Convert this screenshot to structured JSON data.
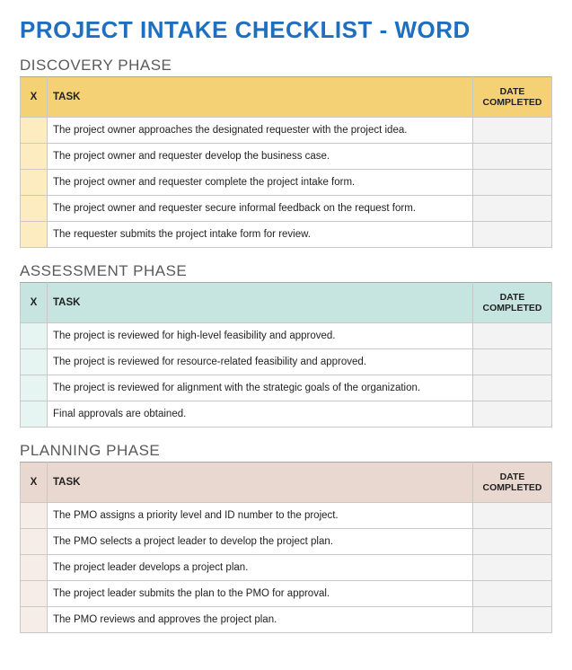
{
  "title": "PROJECT INTAKE CHECKLIST - WORD",
  "title_color": "#1f6fc1",
  "columns": {
    "x": "X",
    "task": "TASK",
    "date": "DATE COMPLETED"
  },
  "sections": [
    {
      "name": "DISCOVERY PHASE",
      "header_bg": "#f4d175",
      "cell_x_bg": "#fdecc0",
      "accent": "#a7a7a3",
      "tasks": [
        "The project owner approaches the designated requester with the project idea.",
        "The project owner and requester develop the business case.",
        "The project owner and requester complete the project intake form.",
        "The project owner and requester secure informal feedback on the request form.",
        "The requester submits the project intake form for review."
      ]
    },
    {
      "name": "ASSESSMENT PHASE",
      "header_bg": "#c6e4e0",
      "cell_x_bg": "#e6f4f2",
      "accent": "#a7a7a3",
      "tasks": [
        "The project is reviewed for high-level feasibility and approved.",
        "The project is reviewed for resource-related feasibility and approved.",
        "The project is reviewed for alignment with the strategic goals of the organization.",
        "Final approvals are obtained."
      ]
    },
    {
      "name": "PLANNING PHASE",
      "header_bg": "#e9d8cf",
      "cell_x_bg": "#f6ede8",
      "accent": "#a7a7a3",
      "tasks": [
        "The PMO assigns a priority level and ID number to the project.",
        "The PMO selects a project leader to develop the project plan.",
        "The project leader develops a project plan.",
        "The project leader submits the plan to the PMO for approval.",
        "The PMO reviews and approves the project plan."
      ]
    }
  ]
}
